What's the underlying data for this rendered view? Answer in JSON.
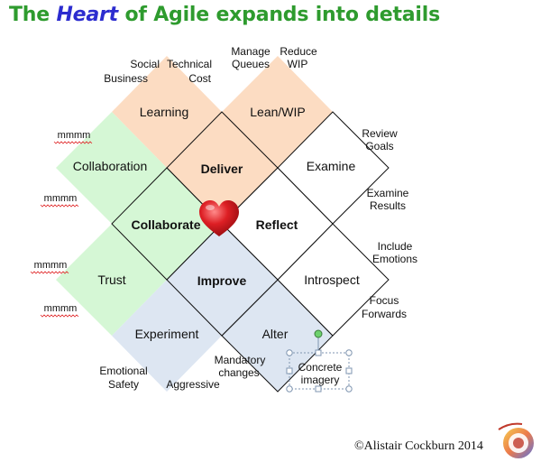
{
  "title": {
    "part1": "The ",
    "highlight": "Heart",
    "part2": " of Agile expands into details"
  },
  "colors": {
    "title_green": "#2e9b2e",
    "title_blue": "#2c2ccf",
    "peach": "#fcdcc2",
    "mint": "#d5f7d5",
    "steel": "#dde6f2",
    "white": "#ffffff",
    "heart": "#d2141b"
  },
  "core": {
    "top": "Deliver",
    "left": "Collaborate",
    "right": "Reflect",
    "bottom": "Improve"
  },
  "outer": {
    "learning": "Learning",
    "lean_wip": "Lean/WIP",
    "collaboration": "Collaboration",
    "examine": "Examine",
    "trust": "Trust",
    "introspect": "Introspect",
    "experiment": "Experiment",
    "alter": "Alter"
  },
  "annotations": {
    "social": "Social",
    "business": "Business",
    "technical": "Technical",
    "cost": "Cost",
    "manage": "Manage",
    "queues": "Queues",
    "reduce": "Reduce",
    "wip": "WIP",
    "review": "Review",
    "goals": "Goals",
    "examine": "Examine",
    "results": "Results",
    "include": "Include",
    "emotions": "Emotions",
    "focus": "Focus",
    "forwards": "Forwards",
    "emotional": "Emotional",
    "safety": "Safety",
    "aggressive": "Aggressive",
    "mandatory": "Mandatory",
    "changes": "changes",
    "concrete": "Concrete",
    "imagery": "imagery",
    "mmmm_1": "mmmm",
    "mmmm_2": "mmmm",
    "mmmm_3": "mmmm",
    "mmmm_4": "mmmm"
  },
  "copyright": "©Alistair Cockburn 2014",
  "icons": {
    "heart": "heart-icon",
    "logo": "logo-icon"
  }
}
